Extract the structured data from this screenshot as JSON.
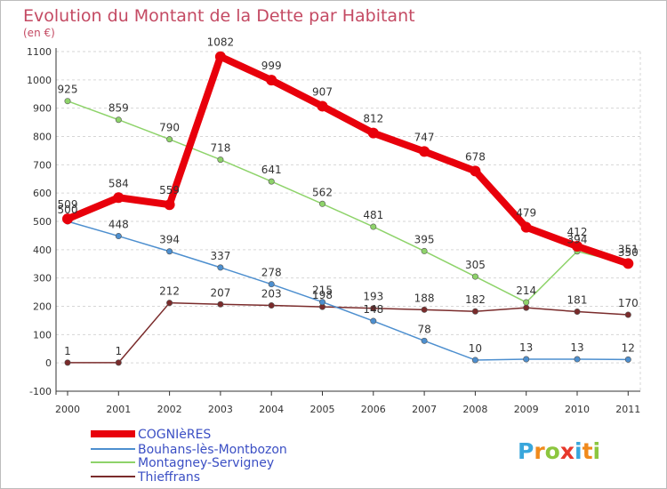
{
  "header": {
    "title": "Evolution du Montant de la Dette par Habitant",
    "unit": "(en €)"
  },
  "logo": {
    "text": "Proxiti",
    "colors": [
      "#3aa7dc",
      "#f08a1c",
      "#8cc63f",
      "#e7382b",
      "#3aa7dc",
      "#f08a1c",
      "#8cc63f"
    ]
  },
  "chart_data": {
    "type": "line",
    "title": "Evolution du Montant de la Dette par Habitant",
    "ylabel": "(en €)",
    "xlabel": "",
    "x": [
      "2000",
      "2001",
      "2002",
      "2003",
      "2004",
      "2005",
      "2006",
      "2007",
      "2008",
      "2009",
      "2010",
      "2011"
    ],
    "ylim": [
      -100,
      1100
    ],
    "yticks": [
      "-100",
      "0",
      "100",
      "200",
      "300",
      "400",
      "500",
      "600",
      "700",
      "800",
      "900",
      "1000",
      "1100"
    ],
    "grid": "horizontal dashed",
    "legend_position": "bottom-left",
    "series": [
      {
        "name": "Thieffrans",
        "color": "#7a2b2b",
        "values": [
          1,
          1,
          212,
          207,
          203,
          198,
          193,
          188,
          182,
          195,
          181,
          170
        ],
        "labels": [
          "1",
          "1",
          "212",
          "207",
          "203",
          "198",
          "193",
          "188",
          "182",
          "",
          "181",
          "170"
        ]
      },
      {
        "name": "Montagney-Servigney",
        "color": "#8ed36a",
        "values": [
          925,
          859,
          790,
          718,
          641,
          562,
          481,
          395,
          305,
          214,
          394,
          350
        ],
        "labels": [
          "925",
          "859",
          "790",
          "718",
          "641",
          "562",
          "481",
          "395",
          "305",
          "214",
          "394",
          "350"
        ]
      },
      {
        "name": "Bouhans-lès-Montbozon",
        "color": "#4d8fcf",
        "values": [
          500,
          448,
          394,
          337,
          278,
          215,
          148,
          78,
          10,
          13,
          13,
          12
        ],
        "labels": [
          "500",
          "448",
          "394",
          "337",
          "278",
          "215",
          "148",
          "78",
          "10",
          "13",
          "13",
          "12"
        ]
      },
      {
        "name": "COGNIèRES",
        "color": "#e8000b",
        "values": [
          509,
          584,
          559,
          1082,
          999,
          907,
          812,
          747,
          678,
          479,
          412,
          351
        ],
        "labels": [
          "509",
          "584",
          "559",
          "1082",
          "999",
          "907",
          "812",
          "747",
          "678",
          "479",
          "412",
          "351"
        ]
      }
    ],
    "legend": [
      "COGNIèRES",
      "Bouhans-lès-Montbozon",
      "Montagney-Servigney",
      "Thieffrans"
    ]
  }
}
